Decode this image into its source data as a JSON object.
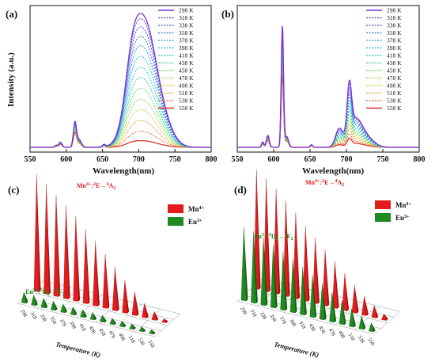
{
  "panel_labels": [
    "(a)",
    "(b)",
    "(c)",
    "(d)"
  ],
  "spectra": {
    "xlabel": "Wavelength(nm)",
    "ylabel": "Intensity (a.u.)",
    "xticks": [
      "550",
      "600",
      "650",
      "700",
      "750",
      "800"
    ],
    "temperatures": [
      "298 K",
      "318 K",
      "338 K",
      "358 K",
      "378 K",
      "398 K",
      "418 K",
      "438 K",
      "458 K",
      "478 K",
      "498 K",
      "518 K",
      "538 K",
      "558 K"
    ],
    "colors": [
      "#7b2fd6",
      "#5a3fd8",
      "#3f55d8",
      "#2f78d8",
      "#2f9ad8",
      "#2fb8d0",
      "#30c8b0",
      "#38cf8c",
      "#5fd66a",
      "#9bd84a",
      "#d9c43a",
      "#e89a36",
      "#e56a30",
      "#d9342c"
    ]
  },
  "bars3d": {
    "temp_axis_label": "Temperature (K)",
    "temp_ticks": [
      "298",
      "318",
      "338",
      "358",
      "378",
      "398",
      "418",
      "438",
      "458",
      "478",
      "498",
      "518",
      "538",
      "558"
    ],
    "legend": [
      {
        "label": "Mn",
        "sup": "4+",
        "color": "#e41b1b"
      },
      {
        "label": "Eu",
        "sup": "3+",
        "color": "#1f8a1f"
      }
    ],
    "mn_annotation": {
      "ion": "Mn",
      "ion_sup": "4+",
      "term1": "E",
      "term1_sup": "2",
      "arrow": "→",
      "term2": "A",
      "term2_sup": "4",
      "term2_sub": "2",
      "sep": ":"
    },
    "eu_annotation": {
      "ion": "Eu",
      "ion_sup": "3+",
      "term1": "D",
      "term1_sup": "5",
      "term1_sub": "0",
      "arrow": "→",
      "term2": "F",
      "term2_sup": "7",
      "term2_sub": "2",
      "sep": ":"
    }
  },
  "chart_data": [
    {
      "type": "line",
      "panel": "(a)",
      "xlabel": "Wavelength(nm)",
      "ylabel": "Intensity (a.u.)",
      "xlim": [
        550,
        800
      ],
      "series_names": [
        "298 K",
        "318 K",
        "338 K",
        "358 K",
        "378 K",
        "398 K",
        "418 K",
        "438 K",
        "458 K",
        "478 K",
        "498 K",
        "518 K",
        "538 K",
        "558 K"
      ],
      "mn_peak_intensity": [
        1.0,
        0.96,
        0.9,
        0.83,
        0.76,
        0.68,
        0.6,
        0.52,
        0.44,
        0.36,
        0.28,
        0.2,
        0.12,
        0.05
      ],
      "eu_peak_intensity": [
        0.3,
        0.29,
        0.28,
        0.27,
        0.26,
        0.25,
        0.24,
        0.23,
        0.22,
        0.21,
        0.2,
        0.19,
        0.18,
        0.17
      ]
    },
    {
      "type": "line",
      "panel": "(b)",
      "xlabel": "Wavelength(nm)",
      "ylabel": "Intensity (a.u.)",
      "xlim": [
        550,
        800
      ],
      "series_names": [
        "298 K",
        "318 K",
        "338 K",
        "358 K",
        "378 K",
        "398 K",
        "418 K",
        "438 K",
        "458 K",
        "478 K",
        "498 K",
        "518 K",
        "538 K",
        "558 K"
      ],
      "mn_peak_intensity": [
        0.44,
        0.42,
        0.39,
        0.36,
        0.33,
        0.3,
        0.27,
        0.24,
        0.21,
        0.18,
        0.15,
        0.12,
        0.09,
        0.06
      ],
      "eu_peak_intensity": [
        1.0,
        0.97,
        0.94,
        0.91,
        0.88,
        0.85,
        0.82,
        0.79,
        0.76,
        0.73,
        0.7,
        0.67,
        0.64,
        0.61
      ]
    },
    {
      "type": "bar",
      "panel": "(c)",
      "categories": [
        "298",
        "318",
        "338",
        "358",
        "378",
        "398",
        "418",
        "438",
        "458",
        "478",
        "498",
        "518",
        "538",
        "558"
      ],
      "series": [
        {
          "name": "Mn4+",
          "values": [
            1.0,
            0.93,
            0.86,
            0.79,
            0.72,
            0.63,
            0.55,
            0.46,
            0.37,
            0.28,
            0.2,
            0.12,
            0.07,
            0.03
          ]
        },
        {
          "name": "Eu3+",
          "values": [
            0.09,
            0.085,
            0.08,
            0.075,
            0.07,
            0.066,
            0.062,
            0.058,
            0.054,
            0.05,
            0.046,
            0.042,
            0.038,
            0.034
          ]
        }
      ]
    },
    {
      "type": "bar",
      "panel": "(d)",
      "categories": [
        "298",
        "318",
        "338",
        "358",
        "378",
        "398",
        "418",
        "438",
        "458",
        "478",
        "498",
        "518",
        "538",
        "558"
      ],
      "series": [
        {
          "name": "Mn4+",
          "values": [
            1.0,
            0.95,
            0.88,
            0.8,
            0.72,
            0.63,
            0.55,
            0.47,
            0.39,
            0.31,
            0.23,
            0.16,
            0.1,
            0.05
          ]
        },
        {
          "name": "Eu3+",
          "values": [
            0.62,
            0.6,
            0.57,
            0.53,
            0.49,
            0.45,
            0.4,
            0.35,
            0.3,
            0.25,
            0.2,
            0.15,
            0.11,
            0.07
          ]
        }
      ]
    }
  ]
}
